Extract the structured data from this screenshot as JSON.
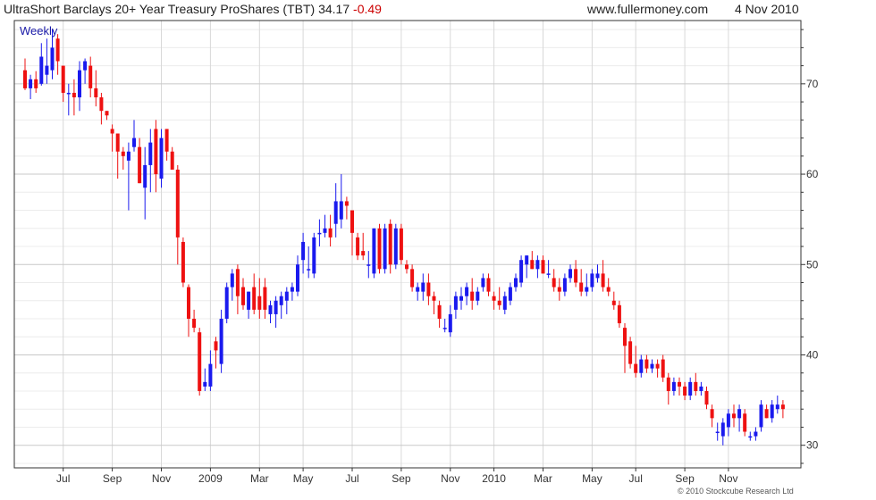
{
  "header": {
    "title": "UltraShort Barclays 20+ Year Treasury ProShares (TBT)",
    "price": "34.17",
    "change": "-0.49",
    "site": "www.fullermoney.com",
    "date": "4 Nov 2010"
  },
  "period_label": "Weekly",
  "copyright": "© 2010 Stockcube Research Ltd",
  "colors": {
    "up": "#1a1aee",
    "down": "#ee1111",
    "grid": "#d8d8d8",
    "axis": "#333333"
  },
  "chart_data": {
    "type": "candlestick",
    "title": "UltraShort Barclays 20+ Year Treasury ProShares (TBT)",
    "xlabel": "",
    "ylabel": "",
    "ylim": [
      27.5,
      77
    ],
    "yticks": [
      30,
      40,
      50,
      60,
      70
    ],
    "grid": true,
    "xticks": [
      {
        "label": "Jul",
        "week": 7
      },
      {
        "label": "Sep",
        "week": 16
      },
      {
        "label": "Nov",
        "week": 25
      },
      {
        "label": "2009",
        "week": 34
      },
      {
        "label": "Mar",
        "week": 43
      },
      {
        "label": "May",
        "week": 51
      },
      {
        "label": "Jul",
        "week": 60
      },
      {
        "label": "Sep",
        "week": 69
      },
      {
        "label": "Nov",
        "week": 78
      },
      {
        "label": "2010",
        "week": 86
      },
      {
        "label": "Mar",
        "week": 95
      },
      {
        "label": "May",
        "week": 104
      },
      {
        "label": "Jul",
        "week": 112
      },
      {
        "label": "Sep",
        "week": 121
      },
      {
        "label": "Nov",
        "week": 129
      }
    ],
    "candles": [
      [
        71.5,
        72.8,
        69.3,
        69.5
      ],
      [
        69.5,
        71.0,
        68.3,
        70.5
      ],
      [
        70.5,
        71.4,
        69.0,
        69.5
      ],
      [
        70.0,
        74.5,
        69.8,
        73.0
      ],
      [
        71.0,
        75.0,
        70.0,
        72.0
      ],
      [
        71.5,
        76.0,
        70.5,
        74.0
      ],
      [
        75.0,
        75.5,
        71.0,
        72.5
      ],
      [
        72.0,
        72.0,
        68.0,
        69.0
      ],
      [
        69.0,
        70.0,
        66.5,
        69.0
      ],
      [
        69.0,
        70.5,
        66.5,
        68.5
      ],
      [
        68.5,
        72.5,
        67.0,
        71.5
      ],
      [
        71.5,
        72.8,
        70.0,
        72.5
      ],
      [
        72.0,
        73.0,
        68.5,
        69.5
      ],
      [
        69.5,
        71.5,
        67.5,
        68.5
      ],
      [
        68.5,
        69.0,
        65.5,
        67.0
      ],
      [
        67.0,
        67.0,
        66.0,
        66.5
      ],
      [
        65.0,
        65.5,
        62.5,
        64.5
      ],
      [
        64.5,
        64.5,
        59.5,
        62.5
      ],
      [
        62.5,
        63.0,
        60.5,
        62.0
      ],
      [
        61.5,
        63.5,
        56.0,
        62.5
      ],
      [
        63.0,
        66.0,
        62.5,
        64.0
      ],
      [
        63.0,
        64.0,
        59.0,
        59.0
      ],
      [
        58.5,
        63.0,
        55.0,
        61.0
      ],
      [
        61.0,
        65.0,
        58.0,
        63.5
      ],
      [
        65.0,
        66.0,
        58.0,
        60.0
      ],
      [
        59.5,
        65.0,
        58.5,
        64.0
      ],
      [
        65.0,
        65.0,
        61.5,
        62.5
      ],
      [
        62.5,
        63.0,
        60.5,
        60.5
      ],
      [
        60.5,
        61.0,
        50.0,
        53.0
      ],
      [
        52.5,
        53.0,
        47.5,
        48.0
      ],
      [
        47.5,
        47.8,
        42.0,
        44.0
      ],
      [
        44.0,
        45.0,
        42.5,
        43.0
      ],
      [
        42.5,
        43.0,
        35.5,
        36.0
      ],
      [
        36.5,
        38.5,
        36.0,
        37.0
      ],
      [
        36.5,
        40.5,
        36.0,
        39.0
      ],
      [
        41.5,
        42.0,
        38.5,
        40.5
      ],
      [
        39.0,
        45.0,
        38.0,
        44.0
      ],
      [
        44.0,
        48.0,
        43.5,
        47.5
      ],
      [
        47.5,
        49.5,
        46.0,
        49.0
      ],
      [
        49.5,
        50.0,
        44.5,
        46.5
      ],
      [
        47.5,
        48.5,
        45.0,
        45.5
      ],
      [
        45.0,
        47.0,
        44.0,
        47.0
      ],
      [
        47.5,
        49.0,
        44.5,
        45.0
      ],
      [
        46.5,
        48.5,
        44.0,
        45.0
      ],
      [
        47.5,
        48.5,
        44.0,
        45.0
      ],
      [
        44.5,
        46.0,
        43.5,
        45.5
      ],
      [
        44.5,
        46.5,
        43.0,
        46.0
      ],
      [
        45.5,
        47.0,
        44.0,
        46.5
      ],
      [
        46.0,
        47.5,
        44.5,
        47.0
      ],
      [
        47.0,
        48.0,
        46.0,
        47.5
      ],
      [
        47.0,
        51.0,
        46.5,
        50.0
      ],
      [
        50.5,
        53.5,
        49.0,
        52.5
      ],
      [
        49.5,
        52.0,
        48.5,
        49.5
      ],
      [
        49.0,
        53.5,
        48.5,
        53.0
      ],
      [
        53.5,
        55.0,
        52.0,
        53.5
      ],
      [
        53.5,
        55.5,
        53.0,
        54.0
      ],
      [
        54.0,
        55.5,
        52.0,
        53.0
      ],
      [
        54.5,
        59.0,
        53.0,
        57.0
      ],
      [
        55.0,
        60.0,
        54.0,
        57.0
      ],
      [
        57.0,
        57.5,
        55.0,
        56.5
      ],
      [
        56.0,
        56.0,
        51.0,
        53.5
      ],
      [
        53.0,
        53.5,
        50.5,
        51.0
      ],
      [
        51.5,
        53.5,
        50.5,
        51.0
      ],
      [
        50.0,
        51.5,
        48.5,
        50.0
      ],
      [
        49.0,
        54.0,
        48.5,
        54.0
      ],
      [
        54.0,
        54.5,
        49.0,
        49.5
      ],
      [
        49.5,
        54.5,
        49.0,
        54.0
      ],
      [
        54.5,
        55.0,
        49.0,
        50.0
      ],
      [
        50.0,
        54.5,
        49.5,
        54.0
      ],
      [
        54.0,
        54.5,
        50.0,
        50.5
      ],
      [
        50.0,
        50.5,
        49.0,
        49.5
      ],
      [
        49.5,
        50.0,
        47.0,
        47.5
      ],
      [
        47.0,
        48.0,
        46.0,
        47.5
      ],
      [
        47.0,
        49.0,
        46.0,
        48.0
      ],
      [
        48.0,
        49.0,
        45.5,
        46.5
      ],
      [
        46.5,
        47.0,
        44.5,
        46.0
      ],
      [
        45.5,
        46.0,
        43.0,
        44.0
      ],
      [
        43.0,
        44.0,
        42.5,
        43.0
      ],
      [
        42.5,
        45.5,
        42.0,
        44.5
      ],
      [
        45.0,
        47.0,
        44.0,
        46.5
      ],
      [
        46.0,
        47.5,
        45.0,
        46.5
      ],
      [
        46.5,
        48.0,
        45.5,
        47.5
      ],
      [
        47.0,
        48.5,
        45.0,
        46.0
      ],
      [
        46.0,
        47.5,
        45.5,
        47.0
      ],
      [
        47.5,
        49.0,
        47.0,
        48.5
      ],
      [
        48.5,
        49.0,
        46.5,
        47.0
      ],
      [
        46.5,
        47.0,
        45.0,
        46.0
      ],
      [
        46.0,
        47.5,
        45.0,
        45.5
      ],
      [
        45.0,
        47.0,
        44.5,
        46.5
      ],
      [
        46.0,
        48.0,
        45.5,
        47.5
      ],
      [
        47.5,
        49.0,
        47.0,
        48.5
      ],
      [
        48.0,
        51.0,
        47.5,
        50.5
      ],
      [
        50.0,
        51.0,
        48.5,
        51.0
      ],
      [
        50.5,
        51.5,
        49.5,
        49.5
      ],
      [
        49.5,
        51.0,
        48.5,
        50.5
      ],
      [
        50.5,
        51.0,
        49.0,
        49.0
      ],
      [
        49.0,
        50.5,
        48.5,
        49.0
      ],
      [
        48.5,
        49.5,
        47.0,
        47.5
      ],
      [
        47.5,
        48.5,
        46.0,
        47.0
      ],
      [
        47.0,
        49.0,
        46.5,
        48.5
      ],
      [
        48.5,
        50.0,
        48.0,
        49.5
      ],
      [
        49.5,
        50.5,
        47.5,
        48.0
      ],
      [
        48.0,
        49.5,
        46.5,
        47.0
      ],
      [
        47.0,
        49.0,
        46.5,
        47.5
      ],
      [
        47.5,
        49.5,
        47.0,
        49.0
      ],
      [
        48.5,
        50.0,
        48.0,
        49.0
      ],
      [
        49.0,
        50.5,
        47.0,
        47.5
      ],
      [
        47.5,
        48.5,
        46.5,
        47.0
      ],
      [
        46.0,
        47.0,
        45.0,
        45.5
      ],
      [
        45.5,
        46.0,
        43.0,
        43.5
      ],
      [
        43.0,
        43.5,
        38.0,
        41.0
      ],
      [
        41.5,
        42.0,
        38.5,
        39.0
      ],
      [
        39.0,
        41.0,
        37.5,
        38.0
      ],
      [
        38.0,
        40.0,
        37.5,
        39.5
      ],
      [
        39.5,
        40.0,
        38.0,
        38.5
      ],
      [
        38.5,
        39.5,
        38.0,
        39.0
      ],
      [
        39.0,
        39.5,
        37.5,
        38.5
      ],
      [
        39.5,
        40.0,
        37.0,
        37.5
      ],
      [
        37.5,
        38.0,
        34.5,
        36.0
      ],
      [
        36.0,
        37.5,
        35.5,
        37.0
      ],
      [
        37.0,
        37.5,
        35.5,
        36.5
      ],
      [
        36.5,
        37.0,
        35.0,
        35.5
      ],
      [
        35.5,
        37.5,
        35.0,
        37.0
      ],
      [
        37.0,
        38.0,
        35.5,
        36.0
      ],
      [
        36.0,
        37.0,
        35.5,
        36.5
      ],
      [
        36.0,
        36.5,
        34.0,
        34.5
      ],
      [
        34.0,
        34.5,
        32.0,
        33.0
      ],
      [
        31.5,
        32.5,
        30.5,
        31.5
      ],
      [
        31.0,
        33.0,
        30.0,
        32.5
      ],
      [
        32.0,
        34.0,
        31.0,
        33.5
      ],
      [
        33.5,
        34.5,
        32.0,
        33.0
      ],
      [
        33.0,
        34.5,
        31.5,
        34.0
      ],
      [
        33.5,
        34.0,
        31.0,
        31.5
      ],
      [
        31.0,
        31.5,
        30.5,
        31.0
      ],
      [
        31.0,
        32.0,
        30.5,
        31.5
      ],
      [
        32.0,
        35.0,
        31.5,
        34.5
      ],
      [
        34.0,
        34.5,
        33.0,
        33.0
      ],
      [
        33.0,
        35.0,
        32.5,
        34.5
      ],
      [
        34.0,
        35.5,
        33.5,
        34.5
      ],
      [
        34.5,
        35.0,
        33.0,
        34.0
      ]
    ]
  }
}
